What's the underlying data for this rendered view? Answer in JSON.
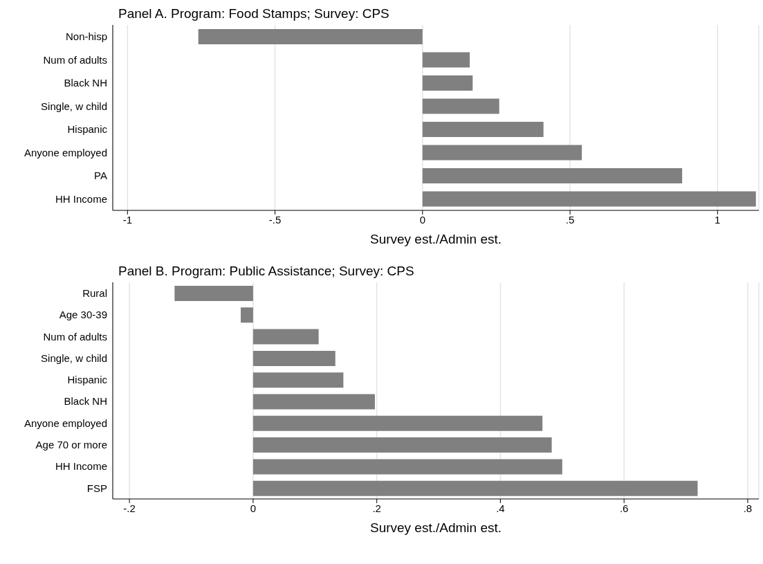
{
  "chart_data": [
    {
      "type": "bar",
      "orientation": "horizontal",
      "title": "Panel A. Program: Food Stamps; Survey: CPS",
      "xlabel": "Survey est./Admin est.",
      "categories": [
        "Non-hisp",
        "Num of adults",
        "Black NH",
        "Single, w child",
        "Hispanic",
        "Anyone employed",
        "PA",
        "HH Income"
      ],
      "values": [
        -0.76,
        0.16,
        0.17,
        0.26,
        0.41,
        0.54,
        0.88,
        1.13
      ],
      "color": "#808080",
      "xlim": [
        -1.05,
        1.14
      ],
      "xticks": [
        {
          "value": -1,
          "label": "-1"
        },
        {
          "value": -0.5,
          "label": "-.5"
        },
        {
          "value": 0,
          "label": "0"
        },
        {
          "value": 0.5,
          "label": ".5"
        },
        {
          "value": 1,
          "label": "1"
        }
      ],
      "grid": "x"
    },
    {
      "type": "bar",
      "orientation": "horizontal",
      "title": "Panel B. Program: Public Assistance; Survey: CPS",
      "xlabel": "Survey est./Admin est.",
      "categories": [
        "Rural",
        "Age 30-39",
        "Num of adults",
        "Single, w child",
        "Hispanic",
        "Black NH",
        "Anyone employed",
        "Age 70 or more",
        "HH Income",
        "FSP"
      ],
      "values": [
        -0.127,
        -0.02,
        0.106,
        0.133,
        0.146,
        0.197,
        0.468,
        0.483,
        0.5,
        0.719
      ],
      "color": "#808080",
      "xlim": [
        -0.227,
        0.818
      ],
      "xticks": [
        {
          "value": -0.2,
          "label": "-.2"
        },
        {
          "value": 0,
          "label": "0"
        },
        {
          "value": 0.2,
          "label": ".2"
        },
        {
          "value": 0.4,
          "label": ".4"
        },
        {
          "value": 0.6,
          "label": ".6"
        },
        {
          "value": 0.8,
          "label": ".8"
        }
      ],
      "grid": "x"
    }
  ]
}
